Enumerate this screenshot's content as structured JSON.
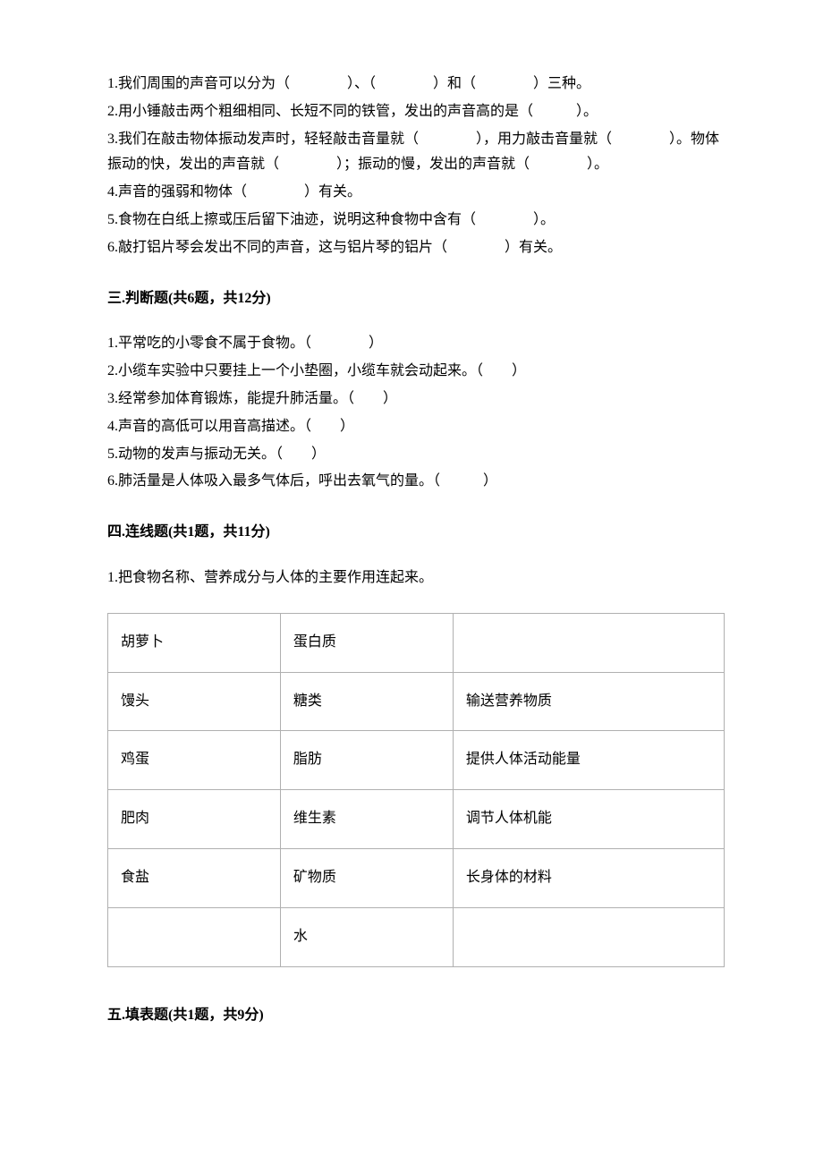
{
  "fill_in": {
    "items": [
      "1.我们周围的声音可以分为（　　　　）、（　　　　）和（　　　　）三种。",
      "2.用小锤敲击两个粗细相同、长短不同的铁管，发出的声音高的是（　　　）。",
      "3.我们在敲击物体振动发声时，轻轻敲击音量就（　　　　），用力敲击音量就（　　　　）。物体振动的快，发出的声音就（　　　　）；振动的慢，发出的声音就（　　　　）。",
      "4.声音的强弱和物体（　　　　）有关。",
      "5.食物在白纸上擦或压后留下油迹，说明这种食物中含有（　　　　）。",
      "6.敲打铝片琴会发出不同的声音，这与铝片琴的铝片（　　　　）有关。"
    ]
  },
  "section_judge": {
    "heading": "三.判断题(共6题，共12分)",
    "items": [
      "1.平常吃的小零食不属于食物。（　　　　）",
      "2.小缆车实验中只要挂上一个小垫圈，小缆车就会动起来。（　　）",
      "3.经常参加体育锻炼，能提升肺活量。（　　）",
      "4.声音的高低可以用音高描述。（　　）",
      "5.动物的发声与振动无关。（　　）",
      "6.肺活量是人体吸入最多气体后，呼出去氧气的量。（　　　）"
    ]
  },
  "section_match": {
    "heading": "四.连线题(共1题，共11分)",
    "instruction": "1.把食物名称、营养成分与人体的主要作用连起来。",
    "rows": [
      {
        "c1": "胡萝卜",
        "c2": "蛋白质",
        "c3": ""
      },
      {
        "c1": "馒头",
        "c2": "糖类",
        "c3": "输送营养物质"
      },
      {
        "c1": "鸡蛋",
        "c2": "脂肪",
        "c3": "提供人体活动能量"
      },
      {
        "c1": "肥肉",
        "c2": "维生素",
        "c3": "调节人体机能"
      },
      {
        "c1": "食盐",
        "c2": "矿物质",
        "c3": "长身体的材料"
      },
      {
        "c1": "",
        "c2": "水",
        "c3": ""
      }
    ]
  },
  "section_table": {
    "heading": "五.填表题(共1题，共9分)"
  }
}
